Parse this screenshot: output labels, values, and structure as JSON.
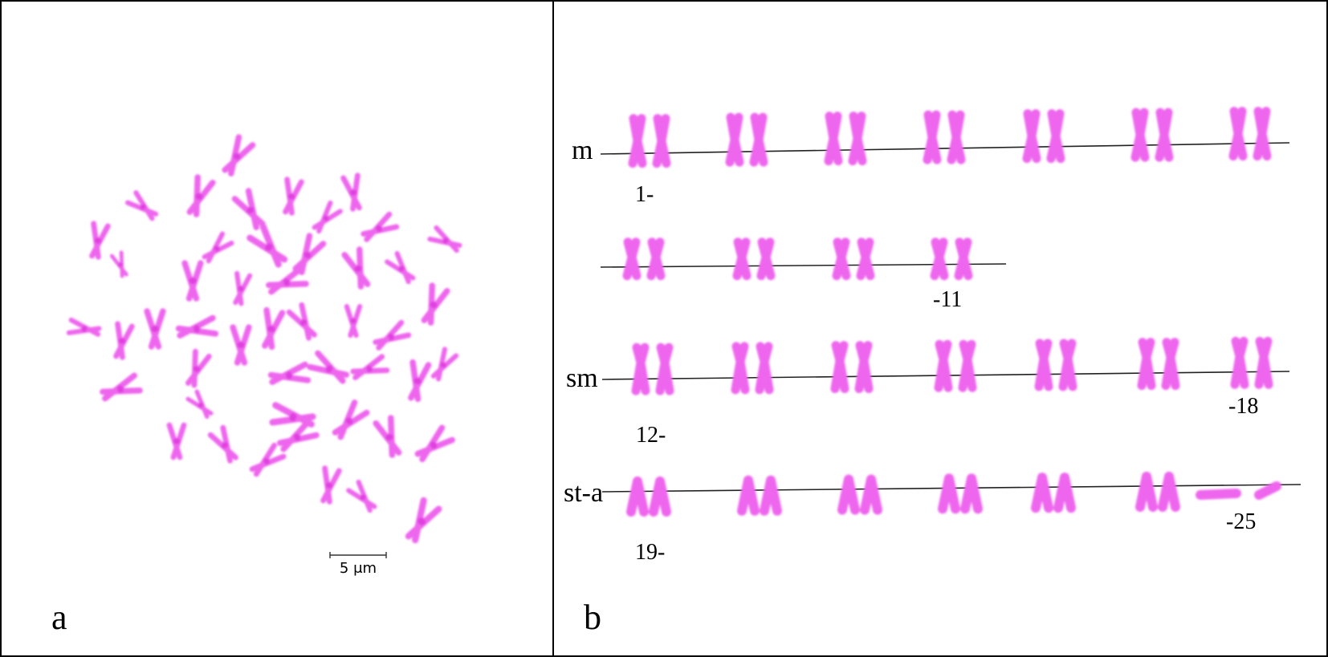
{
  "panels": {
    "a": {
      "label": "a",
      "scale_bar": "5 μm"
    },
    "b": {
      "label": "b",
      "groups": [
        {
          "label": "m",
          "start": "1-",
          "end": "-11"
        },
        {
          "label": "sm",
          "start": "12-",
          "end": "-18"
        },
        {
          "label": "st-a",
          "start": "19-",
          "end": "-25"
        }
      ]
    }
  },
  "colors": {
    "chromosome": "#ee66ee",
    "chromosome_dark": "#e040e0",
    "border": "#000000",
    "background": "#ffffff"
  }
}
